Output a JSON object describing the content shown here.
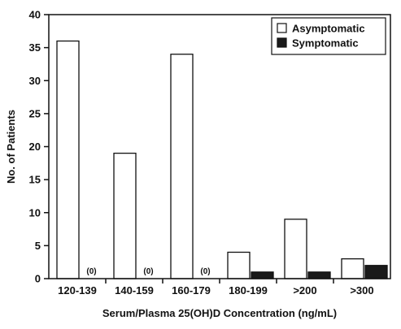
{
  "chart_data": {
    "type": "bar",
    "title": "",
    "xlabel": "Serum/Plasma 25(OH)D Concentration (ng/mL)",
    "ylabel": "No. of Patients",
    "ylim": [
      0,
      40
    ],
    "yticks": [
      0,
      5,
      10,
      15,
      20,
      25,
      30,
      35,
      40
    ],
    "categories": [
      "120-139",
      "140-159",
      "160-179",
      "180-199",
      ">200",
      ">300"
    ],
    "series": [
      {
        "name": "Asymptomatic",
        "values": [
          36,
          19,
          34,
          4,
          9,
          3
        ],
        "color": "#ffffff"
      },
      {
        "name": "Symptomatic",
        "values": [
          0,
          0,
          0,
          1,
          1,
          2
        ],
        "color": "#1a1a1a"
      }
    ],
    "zero_annotation": "(0)",
    "legend_position": "top-right",
    "grid": false
  }
}
